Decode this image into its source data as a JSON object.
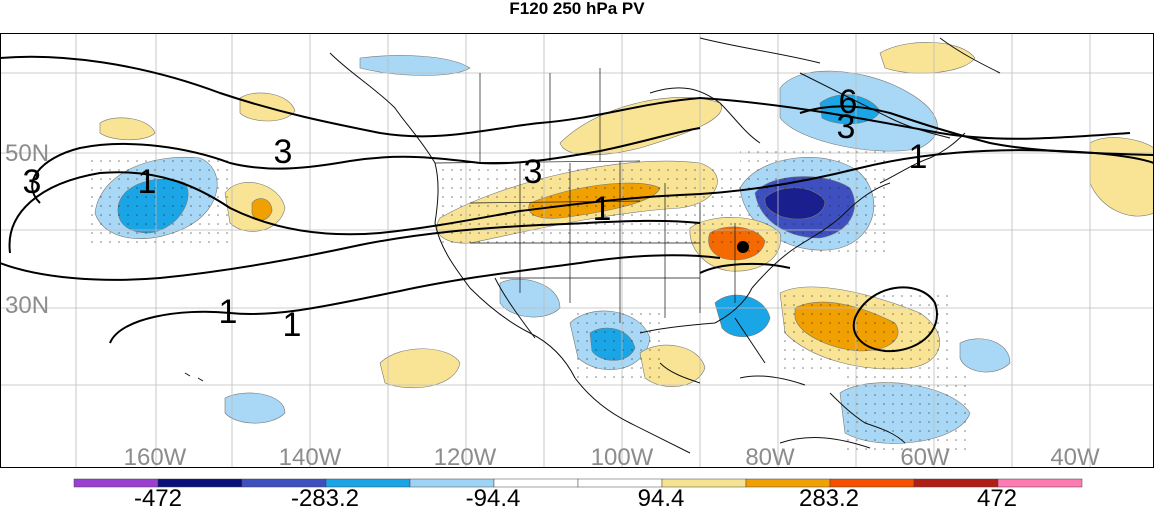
{
  "title": "F120 250 hPa PV",
  "latitude_labels": [
    "50N",
    "30N"
  ],
  "longitude_labels": [
    "160W",
    "140W",
    "120W",
    "100W",
    "80W",
    "60W",
    "40W"
  ],
  "contour_labels": [
    "3",
    "3",
    "3",
    "1",
    "1",
    "1",
    "1",
    "6",
    "3",
    "1"
  ],
  "colorbar": {
    "colors": [
      "#9b3fd0",
      "#0a0f7a",
      "#3e4fc0",
      "#1aa5e6",
      "#9dd4f5",
      "#ffffff",
      "#ffffff",
      "#f6e391",
      "#f0a000",
      "#f45000",
      "#b01e16",
      "#ff7ab0"
    ],
    "labels": [
      "-472",
      "-283.2",
      "-94.4",
      "94.4",
      "283.2",
      "472"
    ]
  },
  "palette": {
    "neg_light": "#a8d8f5",
    "neg_mid": "#1aa5e6",
    "neg_strong": "#3e4fc0",
    "neg_deep": "#1a1f90",
    "pos_light": "#f8e494",
    "pos_mid": "#f0a000",
    "pos_strong": "#f46a00"
  }
}
